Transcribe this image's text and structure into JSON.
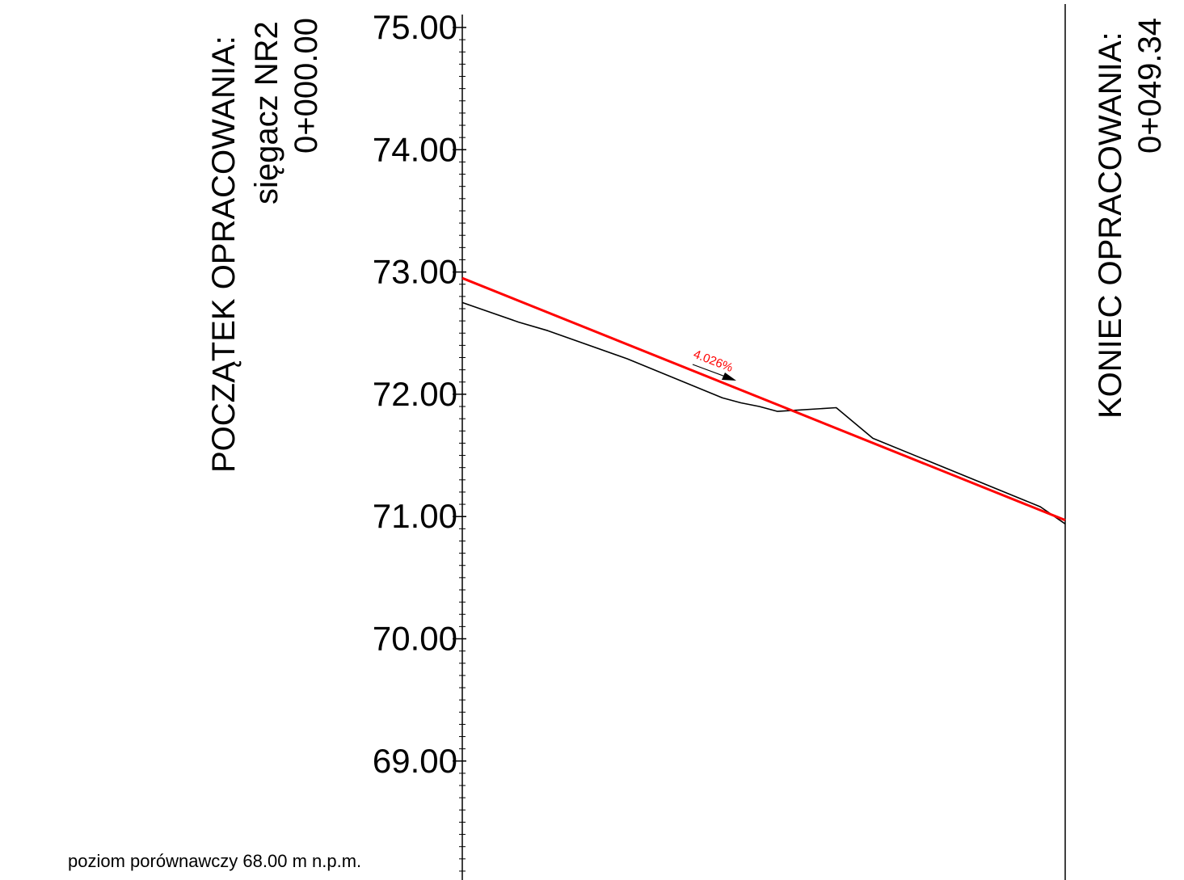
{
  "chart_data": {
    "type": "line",
    "title": "",
    "xlabel": "",
    "ylabel": "",
    "ylim": [
      68.0,
      75.0
    ],
    "xlim": [
      0,
      49.34
    ],
    "y_ticks": [
      "75.00",
      "74.00",
      "73.00",
      "72.00",
      "71.00",
      "70.00",
      "69.00"
    ],
    "y_tick_values": [
      75,
      74,
      73,
      72,
      71,
      70,
      69
    ],
    "series": [
      {
        "color": "#000000",
        "x": [
          0.0,
          4.6,
          7.0,
          13.5,
          21.3,
          22.8,
          24.3,
          25.8,
          30.6,
          33.6,
          47.3,
          49.34
        ],
        "y": [
          72.75,
          72.59,
          72.52,
          72.29,
          71.97,
          71.93,
          71.9,
          71.86,
          71.89,
          71.64,
          71.08,
          70.94
        ]
      },
      {
        "color": "#ff0000",
        "x": [
          0.0,
          49.34
        ],
        "y": [
          72.95,
          70.97
        ]
      }
    ],
    "annotations": {
      "slope": "4.026%"
    }
  },
  "labels": {
    "start_title": "POCZĄTEK OPRACOWANIA:",
    "start_name": "sięgacz NR2",
    "start_station": "0+000.00",
    "end_title": "KONIEC OPRACOWANIA:",
    "end_station": "0+049.34",
    "datum": "poziom porównawczy  68.00 m n.p.m."
  }
}
